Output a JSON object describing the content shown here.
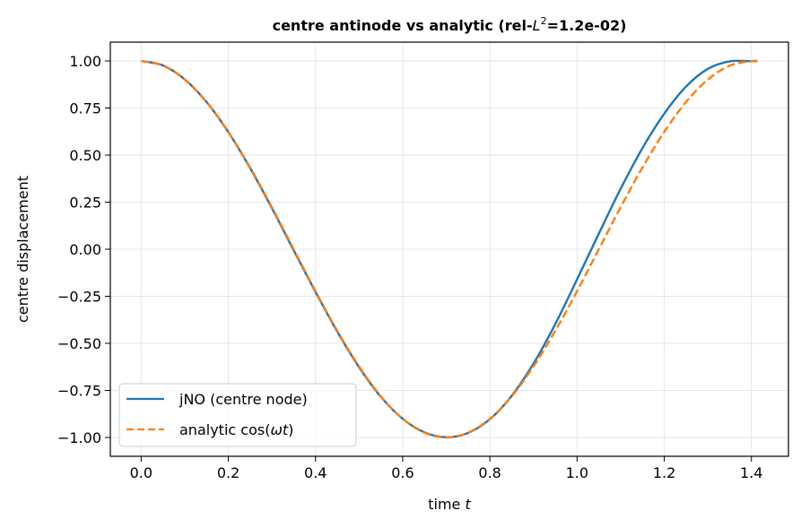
{
  "chart_data": {
    "type": "line",
    "title_main": "centre antinode vs analytic  (rel-",
    "title_math": "L",
    "title_sup": "2",
    "title_tail": "=1.2e-02)",
    "xlabel_text": "time ",
    "xlabel_math": "t",
    "ylabel": "centre displacement",
    "xlim": [
      -0.0707,
      1.4849
    ],
    "ylim": [
      -1.1,
      1.1
    ],
    "x_ticks": [
      0.0,
      0.2,
      0.4,
      0.6,
      0.8,
      1.0,
      1.2,
      1.4
    ],
    "x_tick_labels": [
      "0.0",
      "0.2",
      "0.4",
      "0.6",
      "0.8",
      "1.0",
      "1.2",
      "1.4"
    ],
    "y_ticks": [
      1.0,
      0.75,
      0.5,
      0.25,
      0.0,
      -0.25,
      -0.5,
      -0.75,
      -1.0
    ],
    "y_tick_labels": [
      "1.00",
      "0.75",
      "0.50",
      "0.25",
      "0.00",
      "−0.25",
      "−0.50",
      "−0.75",
      "−1.00"
    ],
    "grid": true,
    "legend_position": "lower-left",
    "series": [
      {
        "name": "jNO (centre node)",
        "color": "#1f77b4",
        "style": "solid",
        "x": [
          0.0,
          0.05,
          0.1,
          0.15,
          0.2,
          0.25,
          0.3,
          0.35,
          0.4,
          0.45,
          0.5,
          0.55,
          0.6,
          0.65,
          0.7,
          0.75,
          0.8,
          0.85,
          0.9,
          0.95,
          1.0,
          1.05,
          1.1,
          1.15,
          1.2,
          1.25,
          1.3,
          1.35,
          1.4,
          1.414
        ],
        "y": [
          1.0,
          0.976,
          0.902,
          0.782,
          0.622,
          0.431,
          0.218,
          -0.006,
          -0.227,
          -0.438,
          -0.627,
          -0.784,
          -0.901,
          -0.973,
          -0.999,
          -0.976,
          -0.903,
          -0.779,
          -0.608,
          -0.398,
          -0.16,
          0.083,
          0.321,
          0.537,
          0.72,
          0.864,
          0.958,
          0.998,
          0.999,
          1.0
        ]
      },
      {
        "name_text": "analytic cos(",
        "name_math": "ωt",
        "name_tail": ")",
        "color": "#ff7f0e",
        "style": "dashed",
        "x": [
          0.0,
          0.05,
          0.1,
          0.15,
          0.2,
          0.25,
          0.3,
          0.35,
          0.4,
          0.45,
          0.5,
          0.55,
          0.6,
          0.65,
          0.7,
          0.75,
          0.8,
          0.85,
          0.9,
          0.95,
          1.0,
          1.05,
          1.1,
          1.15,
          1.2,
          1.25,
          1.3,
          1.35,
          1.4,
          1.414
        ],
        "y": [
          1.0,
          0.975,
          0.901,
          0.782,
          0.623,
          0.434,
          0.223,
          0.0,
          -0.223,
          -0.434,
          -0.623,
          -0.782,
          -0.901,
          -0.975,
          -1.0,
          -0.975,
          -0.901,
          -0.782,
          -0.623,
          -0.434,
          -0.223,
          0.0,
          0.223,
          0.434,
          0.623,
          0.782,
          0.901,
          0.975,
          0.999,
          1.0
        ]
      }
    ]
  }
}
